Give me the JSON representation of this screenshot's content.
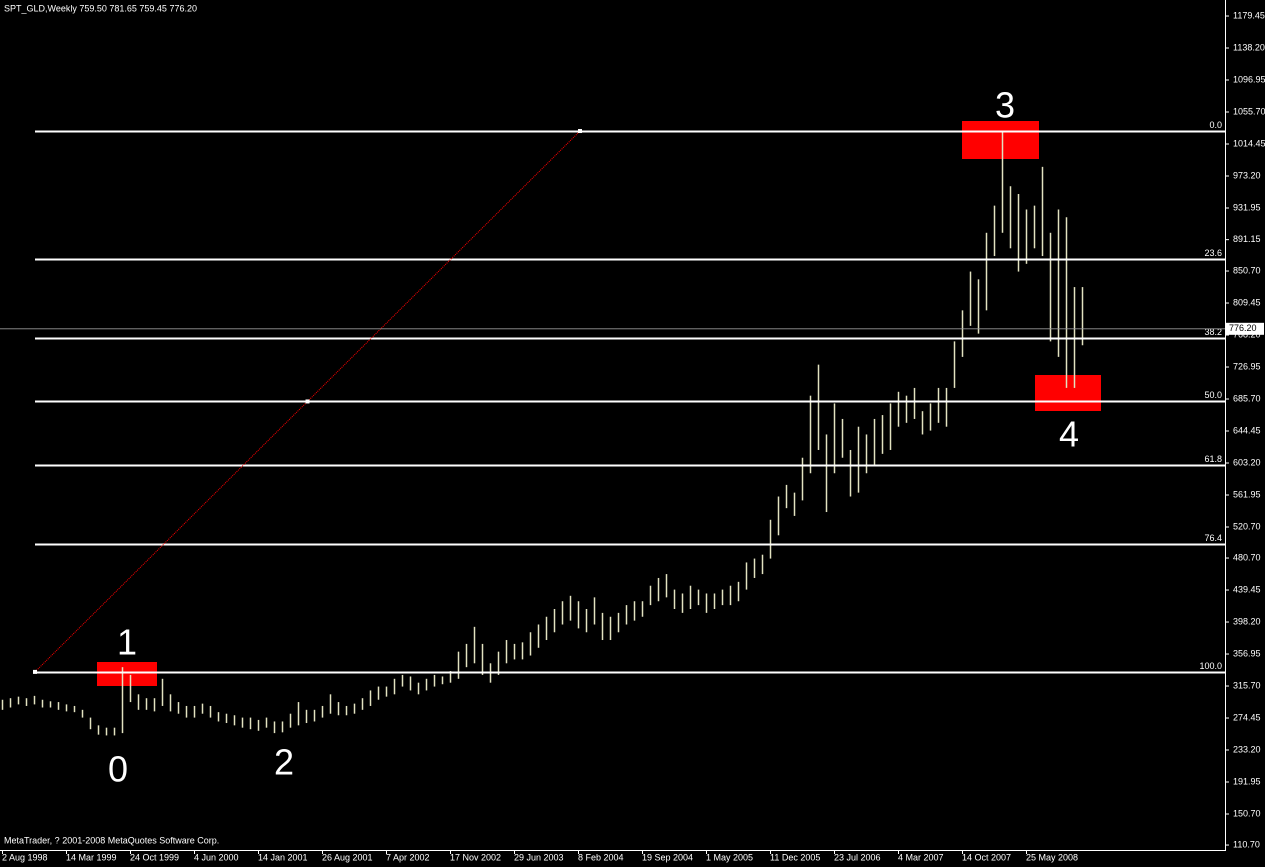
{
  "chart_data": {
    "type": "hl_bars",
    "title": "SPT_GLD,Weekly  759.50 781.65 759.45 776.20",
    "footer": "MetaTrader, ? 2001-2008 MetaQuotes Software Corp.",
    "color": "#e2e2c0",
    "categories": [
      "2 Aug 1998",
      null,
      null,
      null,
      null,
      null,
      null,
      null,
      "14 Mar 1999",
      null,
      null,
      null,
      null,
      null,
      null,
      null,
      "24 Oct 1999",
      null,
      null,
      null,
      null,
      null,
      null,
      null,
      "4 Jun 2000",
      null,
      null,
      null,
      null,
      null,
      null,
      null,
      "14 Jan 2001",
      null,
      null,
      null,
      null,
      null,
      null,
      null,
      "26 Aug 2001",
      null,
      null,
      null,
      null,
      null,
      null,
      null,
      "7 Apr 2002",
      null,
      null,
      null,
      null,
      null,
      null,
      null,
      "17 Nov 2002",
      null,
      null,
      null,
      null,
      null,
      null,
      null,
      "29 Jun 2003",
      null,
      null,
      null,
      null,
      null,
      null,
      null,
      "8 Feb 2004",
      null,
      null,
      null,
      null,
      null,
      null,
      null,
      "19 Sep 2004",
      null,
      null,
      null,
      null,
      null,
      null,
      null,
      "1 May 2005",
      null,
      null,
      null,
      null,
      null,
      null,
      null,
      "11 Dec 2005",
      null,
      null,
      null,
      null,
      null,
      null,
      null,
      "23 Jul 2006",
      null,
      null,
      null,
      null,
      null,
      null,
      null,
      "4 Mar 2007",
      null,
      null,
      null,
      null,
      null,
      null,
      null,
      "14 Oct 2007",
      null,
      null,
      null,
      null,
      null,
      null,
      null,
      "25 May 2008",
      null,
      null,
      null,
      null,
      null,
      null,
      null
    ],
    "high": [
      298,
      300,
      302,
      300,
      303,
      298,
      296,
      295,
      292,
      290,
      285,
      275,
      265,
      262,
      262,
      340,
      330,
      305,
      300,
      300,
      325,
      305,
      295,
      290,
      290,
      293,
      290,
      282,
      280,
      278,
      275,
      275,
      272,
      275,
      270,
      270,
      280,
      295,
      285,
      285,
      290,
      305,
      295,
      290,
      293,
      300,
      310,
      315,
      315,
      325,
      330,
      328,
      320,
      325,
      330,
      328,
      335,
      360,
      370,
      392,
      370,
      345,
      360,
      375,
      370,
      372,
      385,
      395,
      405,
      415,
      425,
      432,
      425,
      415,
      430,
      410,
      405,
      410,
      420,
      425,
      425,
      445,
      455,
      460,
      440,
      435,
      445,
      440,
      435,
      435,
      440,
      445,
      450,
      475,
      480,
      485,
      530,
      560,
      575,
      565,
      610,
      690,
      730,
      640,
      680,
      660,
      620,
      650,
      640,
      660,
      665,
      680,
      695,
      690,
      700,
      670,
      680,
      700,
      700,
      760,
      800,
      850,
      840,
      900,
      935,
      1030,
      960,
      950,
      930,
      935,
      985,
      900,
      930,
      920,
      830,
      830
    ],
    "low": [
      285,
      288,
      292,
      290,
      292,
      288,
      288,
      285,
      283,
      282,
      275,
      260,
      253,
      252,
      252,
      255,
      295,
      285,
      285,
      283,
      290,
      283,
      280,
      275,
      275,
      280,
      275,
      270,
      268,
      265,
      262,
      260,
      258,
      262,
      255,
      256,
      262,
      265,
      268,
      270,
      275,
      280,
      278,
      278,
      280,
      285,
      290,
      298,
      302,
      305,
      315,
      310,
      305,
      310,
      315,
      318,
      320,
      325,
      340,
      345,
      330,
      320,
      330,
      345,
      350,
      350,
      355,
      365,
      375,
      385,
      395,
      400,
      390,
      385,
      395,
      375,
      375,
      385,
      395,
      400,
      405,
      420,
      425,
      430,
      415,
      410,
      415,
      420,
      410,
      415,
      420,
      420,
      425,
      440,
      455,
      460,
      480,
      510,
      545,
      535,
      555,
      590,
      620,
      540,
      590,
      610,
      560,
      565,
      590,
      600,
      615,
      620,
      650,
      655,
      660,
      640,
      645,
      655,
      650,
      700,
      740,
      780,
      770,
      800,
      870,
      900,
      880,
      850,
      860,
      880,
      870,
      760,
      740,
      700,
      700,
      755
    ],
    "ylim": [
      104.3,
      1200.1
    ],
    "yticks": [
      1179.45,
      {
        "value": 1138.2,
        "label": "1138.20"
      },
      1096.95,
      {
        "value": 1055.7,
        "label": "1055.70"
      },
      1014.45,
      {
        "value": 973.2,
        "label": "973.20"
      },
      931.95,
      891.15,
      {
        "value": 850.7,
        "label": "850.70"
      },
      809.45,
      {
        "value": 768.2,
        "label": "768.20"
      },
      726.95,
      {
        "value": 685.7,
        "label": "685.70"
      },
      644.45,
      {
        "value": 603.2,
        "label": "603.20"
      },
      561.95,
      {
        "value": 520.7,
        "label": "520.70"
      },
      {
        "value": 480.7,
        "label": "480.70"
      },
      439.45,
      {
        "value": 398.2,
        "label": "398.20"
      },
      356.95,
      {
        "value": 315.7,
        "label": "315.70"
      },
      274.45,
      {
        "value": 233.2,
        "label": "233.20"
      },
      191.95,
      {
        "value": 150.7,
        "label": "150.70"
      },
      {
        "value": 110.7,
        "label": "110.70"
      }
    ],
    "last_price": {
      "value": 776.2,
      "label": "776.20"
    },
    "fibo": {
      "from": 333.9,
      "to": 1031.2,
      "levels": [
        {
          "value": 0,
          "label": "0.0"
        },
        23.6,
        38.2,
        {
          "value": 50,
          "label": "50.0"
        },
        61.8,
        76.4,
        {
          "value": 100,
          "label": "100.0"
        }
      ]
    },
    "annotations": [
      "0",
      "1",
      "2",
      "3",
      "4"
    ]
  }
}
